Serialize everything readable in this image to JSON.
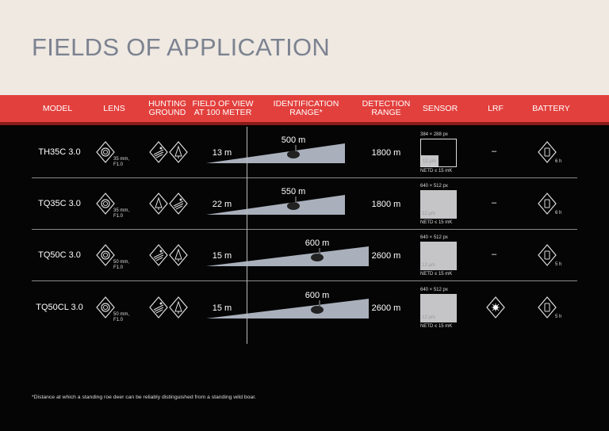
{
  "title": "FIELDS OF APPLICATION",
  "headers": [
    "MODEL",
    "LENS",
    "HUNTING GROUND",
    "FIELD OF VIEW AT 100 METER",
    "IDENTIFICATION RANGE*",
    "DETECTION RANGE",
    "SENSOR",
    "LRF",
    "BATTERY"
  ],
  "rows": [
    {
      "model": "TH35C 3.0",
      "lens": "35 mm, F1.0",
      "fov": "13 m",
      "id_range": "500 m",
      "id_range_m": 500,
      "detection": "1800 m",
      "resolution": "384 × 288 px",
      "pixel": "12 µm",
      "netd": "NETD ≤ 15 mK",
      "sensor_filled": false,
      "lrf": "–",
      "battery": "6 h",
      "hunting_icons": [
        "field-icon",
        "forest-icon"
      ]
    },
    {
      "model": "TQ35C 3.0",
      "lens": "35 mm, F1.0",
      "fov": "22 m",
      "id_range": "550 m",
      "id_range_m": 550,
      "detection": "1800 m",
      "resolution": "640 × 512 px",
      "pixel": "12 µm",
      "netd": "NETD ≤ 15 mK",
      "sensor_filled": true,
      "lrf": "–",
      "battery": "6 h",
      "hunting_icons": [
        "forest-icon",
        "field-icon"
      ]
    },
    {
      "model": "TQ50C 3.0",
      "lens": "50 mm, F1.0",
      "fov": "15 m",
      "id_range": "600 m",
      "id_range_m": 600,
      "detection": "2600 m",
      "resolution": "640 × 512 px",
      "pixel": "12 µm",
      "netd": "NETD ≤ 15 mK",
      "sensor_filled": true,
      "lrf": "–",
      "battery": "5 h",
      "hunting_icons": [
        "field-icon",
        "forest-icon"
      ]
    },
    {
      "model": "TQ50CL 3.0",
      "lens": "50 mm, F1.0",
      "fov": "15 m",
      "id_range": "600 m",
      "id_range_m": 600,
      "detection": "2600 m",
      "resolution": "640 × 512 px",
      "pixel": "12 µm",
      "netd": "NETD ≤ 15 mK",
      "sensor_filled": true,
      "lrf": "laser-icon",
      "battery": "5 h",
      "hunting_icons": [
        "field-icon",
        "forest-icon"
      ]
    }
  ],
  "footnote": "*Distance at which a standing roe deer can be reliably distinguished from a standing wild boar.",
  "colors": {
    "header_bg": "#e2403d",
    "title": "#7c8290",
    "page_top": "#efe9e2",
    "wedge": "#a9b0bc"
  }
}
